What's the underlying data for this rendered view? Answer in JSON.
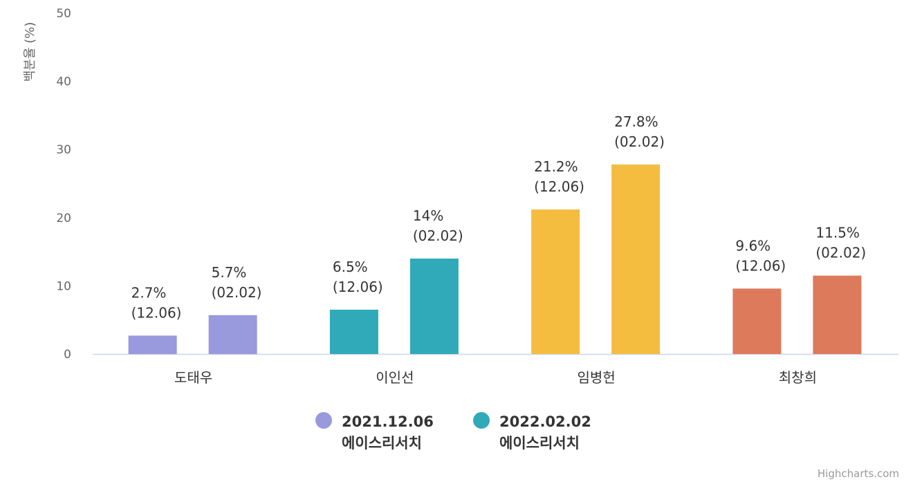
{
  "chart_data": {
    "type": "bar",
    "title": "",
    "xlabel": "",
    "ylabel": "백분율 (%)",
    "ylim": [
      0,
      50
    ],
    "yticks": [
      0,
      10,
      20,
      30,
      40,
      50
    ],
    "grid": false,
    "categories": [
      "도태우",
      "이인선",
      "임병헌",
      "최창희"
    ],
    "category_colors": [
      "#9999dd",
      "#30a9b8",
      "#f4bd40",
      "#de7a5c"
    ],
    "series": [
      {
        "name": "2021.12.06",
        "name_line2": "에이스리서치",
        "tag": "(12.06)",
        "color": "#9999dd",
        "values": [
          2.7,
          6.5,
          21.2,
          9.6
        ],
        "labels": [
          "2.7%",
          "6.5%",
          "21.2%",
          "9.6%"
        ]
      },
      {
        "name": "2022.02.02",
        "name_line2": "에이스리서치",
        "tag": "(02.02)",
        "color": "#30a9b8",
        "values": [
          5.7,
          14,
          27.8,
          11.5
        ],
        "labels": [
          "5.7%",
          "14%",
          "27.8%",
          "11.5%"
        ]
      }
    ],
    "legend_position": "bottom-center"
  },
  "credit": "Highcharts.com"
}
